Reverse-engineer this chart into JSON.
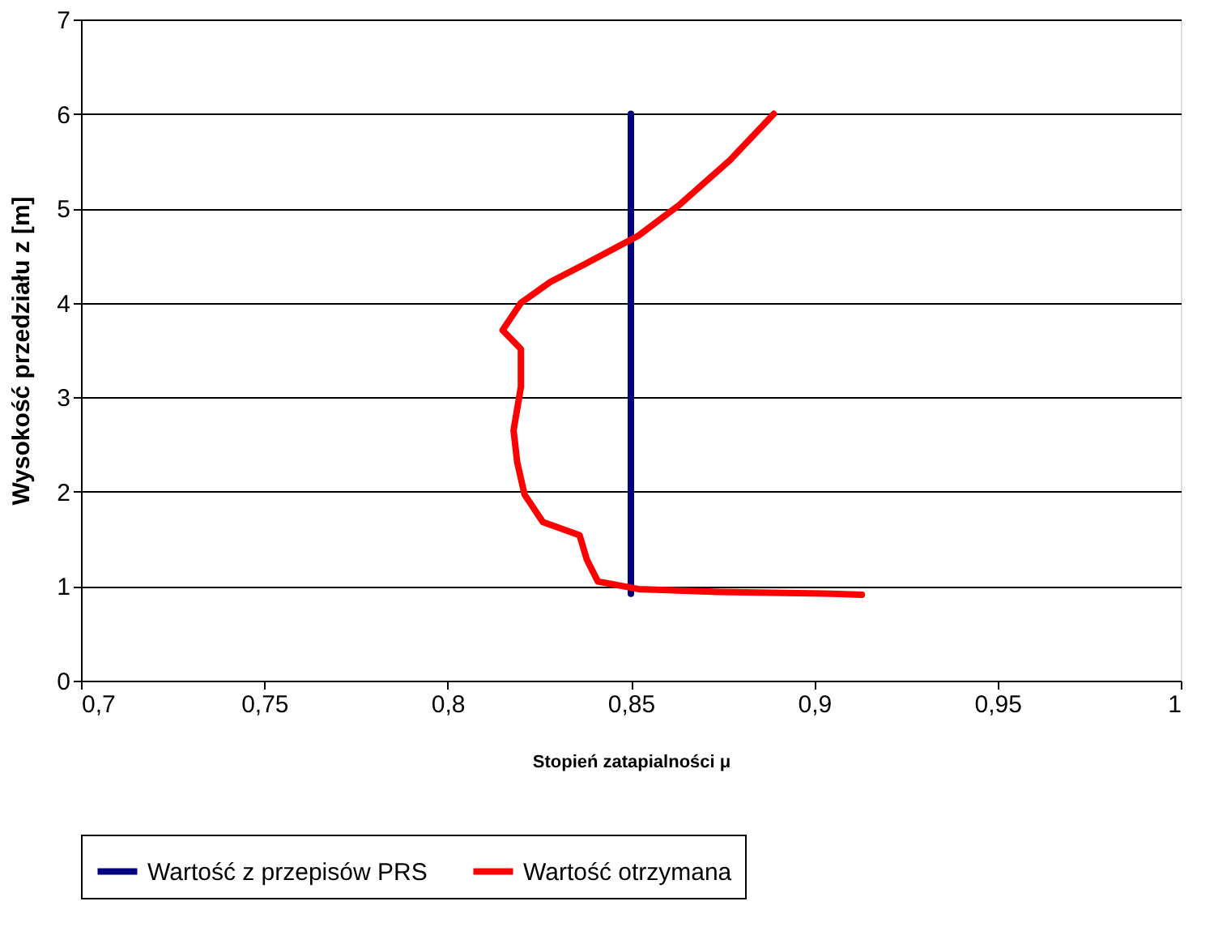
{
  "chart_data": {
    "type": "line",
    "xlabel": "Stopień zatapialności μ",
    "ylabel": "Wysokość przedziału z [m]",
    "xlim": [
      0.7,
      1
    ],
    "xticks": [
      {
        "value": 0.7,
        "label": "0,7"
      },
      {
        "value": 0.75,
        "label": "0,75"
      },
      {
        "value": 0.8,
        "label": "0,8"
      },
      {
        "value": 0.85,
        "label": "0,85"
      },
      {
        "value": 0.9,
        "label": "0,9"
      },
      {
        "value": 0.95,
        "label": "0,95"
      },
      1
    ],
    "ylim": [
      0,
      7
    ],
    "yticks": [
      0,
      1,
      2,
      3,
      4,
      5,
      6,
      7
    ],
    "grid": "y",
    "legend": "bottom",
    "marker": "none",
    "line_style": "solid",
    "series": [
      {
        "name": "Wartość z przepisów PRS",
        "color": "#000080",
        "x": [
          0.85,
          0.85
        ],
        "values": [
          0.92,
          6.0
        ]
      },
      {
        "name": "Wartość otrzymana",
        "color": "#ff0000",
        "x": [
          0.889,
          0.877,
          0.863,
          0.852,
          0.837,
          0.828,
          0.82,
          0.815,
          0.82,
          0.82,
          0.818,
          0.819,
          0.821,
          0.826,
          0.836,
          0.838,
          0.841,
          0.852,
          0.874,
          0.905,
          0.913
        ],
        "values": [
          6.0,
          5.51,
          5.03,
          4.71,
          4.4,
          4.22,
          4.0,
          3.71,
          3.51,
          3.11,
          2.65,
          2.31,
          1.97,
          1.68,
          1.54,
          1.28,
          1.05,
          0.97,
          0.94,
          0.92,
          0.91
        ]
      }
    ]
  }
}
